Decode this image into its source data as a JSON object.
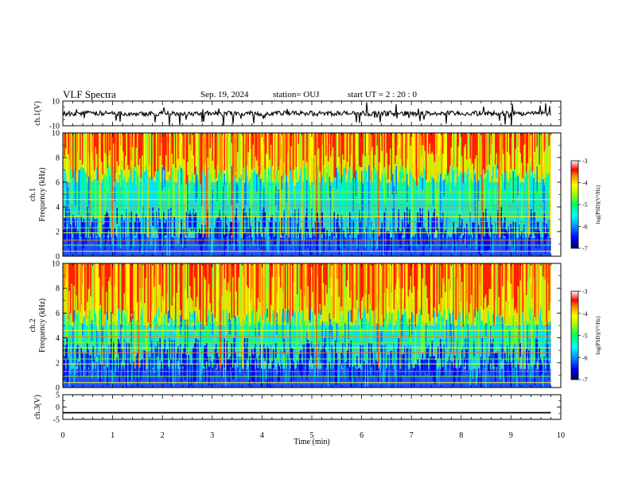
{
  "header": {
    "title": "VLF Spectra",
    "date": "Sep. 19, 2024",
    "station": "station= OUJ",
    "start": "start  UT =   2 : 20 : 0"
  },
  "chart_data": [
    {
      "type": "line",
      "panel": "ch1-waveform",
      "ylabel": "ch.1(V)",
      "ylim": [
        -10,
        10
      ],
      "yticks": [
        10,
        -10
      ],
      "xlim": [
        0,
        10
      ],
      "series": [
        {
          "x": [
            0,
            9.8
          ],
          "y": [
            0,
            0
          ]
        }
      ],
      "color": "#000000"
    },
    {
      "type": "heatmap",
      "panel": "ch1-spectrogram",
      "ylabel_top": "ch.1",
      "ylabel": "Frequency  (kHz)",
      "ylim": [
        0,
        10
      ],
      "yticks": [
        0,
        2,
        4,
        6,
        8,
        10
      ],
      "xlim": [
        0,
        9.8
      ],
      "colorbar": {
        "label": "log(PSD)(V²/Hz)",
        "range": [
          -7,
          -3
        ],
        "ticks": [
          -7,
          -6,
          -5,
          -4,
          -3
        ]
      },
      "levels": {
        "low": [
          0,
          1.5
        ],
        "mid": [
          1.5,
          6
        ],
        "high": [
          6,
          10
        ]
      }
    },
    {
      "type": "heatmap",
      "panel": "ch2-spectrogram",
      "ylabel_top": "ch.2",
      "ylabel": "Frequency  (kHz)",
      "ylim": [
        0,
        10
      ],
      "yticks": [
        0,
        2,
        4,
        6,
        8,
        10
      ],
      "xlim": [
        0,
        9.8
      ],
      "colorbar": {
        "label": "log(PSD)(V²/Hz)",
        "range": [
          -7,
          -3
        ],
        "ticks": [
          -7,
          -6,
          -5,
          -4,
          -3
        ]
      },
      "levels": {
        "low": [
          0,
          1.5
        ],
        "mid": [
          1.5,
          5
        ],
        "high": [
          5,
          10
        ]
      }
    },
    {
      "type": "line",
      "panel": "ch3-waveform",
      "ylabel": "ch.3(V)",
      "ylim": [
        -5,
        5
      ],
      "yticks": [
        5,
        0,
        -5
      ],
      "xlim": [
        0,
        10
      ],
      "series": [
        {
          "x": [
            0,
            9.8
          ],
          "y": [
            -2.3,
            -2.3
          ]
        }
      ],
      "xlabel": "Time  (min)",
      "xticks": [
        0,
        1,
        2,
        3,
        4,
        5,
        6,
        7,
        8,
        9,
        10
      ]
    }
  ],
  "colors": {
    "scale": [
      "#000080",
      "#0000ff",
      "#0080ff",
      "#00ffff",
      "#00ff80",
      "#80ff00",
      "#ffff00",
      "#ff8000",
      "#ff0000",
      "#ffffff"
    ]
  }
}
